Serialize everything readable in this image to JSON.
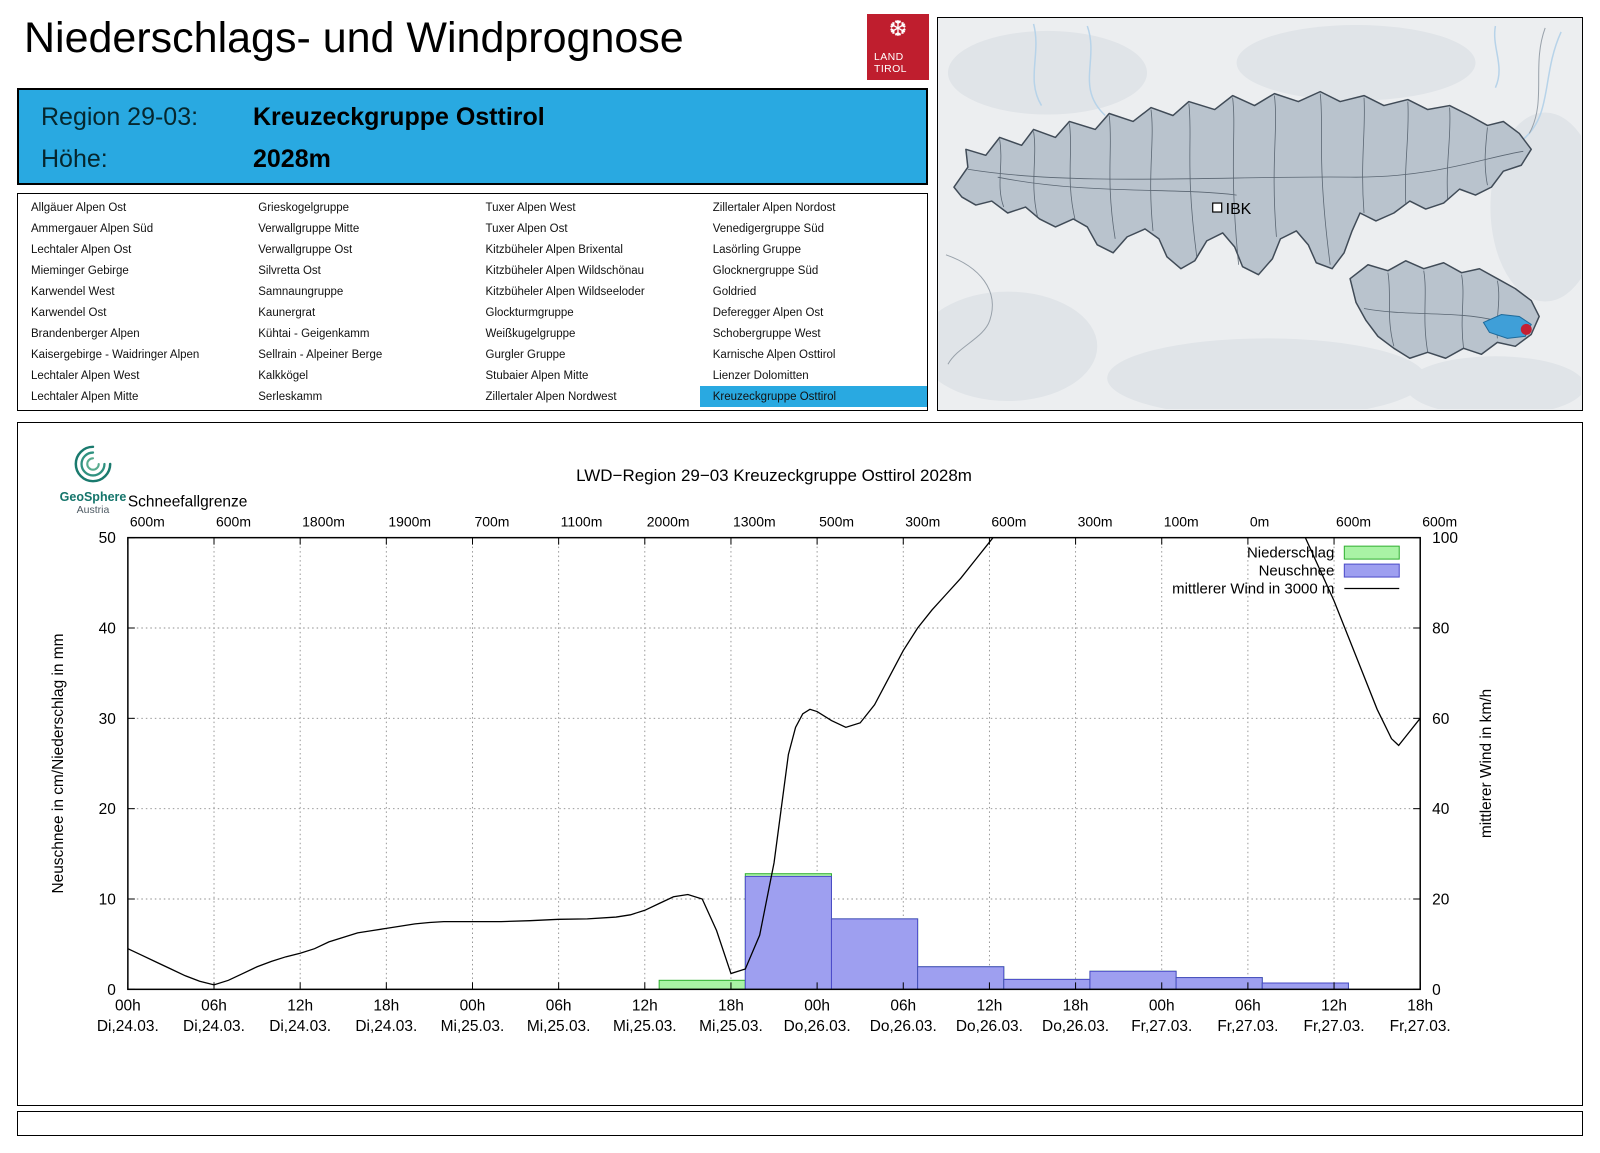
{
  "page_title": "Niederschlags- und Windprognose",
  "logo": {
    "icon": "tirol-eagle",
    "glyph": "❆",
    "line1": "LAND",
    "line2": "TIROL",
    "bg_color": "#bf1e2e"
  },
  "region_header": {
    "region_label": "Region 29-03:",
    "region_value": "Kreuzeckgruppe Osttirol",
    "altitude_label": "Höhe:",
    "altitude_value": "2028m",
    "bg_color": "#29a9e1"
  },
  "region_list": {
    "selected": "Kreuzeckgruppe Osttirol",
    "selected_bg": "#29a9e1",
    "columns": [
      [
        "Allgäuer Alpen Ost",
        "Ammergauer Alpen Süd",
        "Lechtaler Alpen Ost",
        "Mieminger Gebirge",
        "Karwendel West",
        "Karwendel Ost",
        "Brandenberger Alpen",
        "Kaisergebirge - Waidringer Alpen",
        "Lechtaler Alpen West",
        "Lechtaler Alpen Mitte"
      ],
      [
        "Grieskogelgruppe",
        "Verwallgruppe Mitte",
        "Verwallgruppe Ost",
        "Silvretta Ost",
        "Samnaungruppe",
        "Kaunergrat",
        "Kühtai - Geigenkamm",
        "Sellrain - Alpeiner Berge",
        "Kalkkögel",
        "Serleskamm"
      ],
      [
        "Tuxer Alpen West",
        "Tuxer Alpen Ost",
        "Kitzbüheler Alpen Brixental",
        "Kitzbüheler Alpen Wildschönau",
        "Kitzbüheler Alpen Wildseeloder",
        "Glockturmgruppe",
        "Weißkugelgruppe",
        "Gurgler Gruppe",
        "Stubaier Alpen Mitte",
        "Zillertaler Alpen Nordwest"
      ],
      [
        "Zillertaler Alpen Nordost",
        "Venedigergruppe Süd",
        "Lasörling Gruppe",
        "Glocknergruppe Süd",
        "Goldried",
        "Deferegger Alpen Ost",
        "Schobergruppe West",
        "Karnische Alpen Osttirol",
        "Lienzer Dolomitten",
        "Kreuzeckgruppe Osttirol"
      ]
    ]
  },
  "map": {
    "city_label": "IBK",
    "region_fill": "#b9c3cd",
    "region_stroke": "#404b57",
    "highlight_fill": "#3f9fd8",
    "marker_color": "#c41f33"
  },
  "geosphere_logo": {
    "line1": "GeoSphere",
    "line2": "Austria"
  },
  "chart_data": {
    "type": "mixed",
    "title": "LWD−Region 29−03 Kreuzeckgruppe Osttirol 2028m",
    "snowline_label": "Schneefallgrenze",
    "snowline_values": [
      "600m",
      "600m",
      "1800m",
      "1900m",
      "700m",
      "1100m",
      "2000m",
      "1300m",
      "500m",
      "300m",
      "600m",
      "300m",
      "100m",
      "0m",
      "600m",
      "600m"
    ],
    "ylabel_left": "Neuschnee in cm/Niederschlag in mm",
    "ylabel_right": "mittlerer Wind in km/h",
    "ylim_left": [
      0,
      50
    ],
    "ylim_right": [
      0,
      100
    ],
    "yticks_left": [
      0,
      10,
      20,
      30,
      40,
      50
    ],
    "yticks_right": [
      0,
      20,
      40,
      60,
      80,
      100
    ],
    "grid": true,
    "legend_position": "top-right",
    "x_hours_range": [
      0,
      90
    ],
    "xticks": [
      {
        "hour": 0,
        "time": "00h",
        "date": "Di,24.03."
      },
      {
        "hour": 6,
        "time": "06h",
        "date": "Di,24.03."
      },
      {
        "hour": 12,
        "time": "12h",
        "date": "Di,24.03."
      },
      {
        "hour": 18,
        "time": "18h",
        "date": "Di,24.03."
      },
      {
        "hour": 24,
        "time": "00h",
        "date": "Mi,25.03."
      },
      {
        "hour": 30,
        "time": "06h",
        "date": "Mi,25.03."
      },
      {
        "hour": 36,
        "time": "12h",
        "date": "Mi,25.03."
      },
      {
        "hour": 42,
        "time": "18h",
        "date": "Mi,25.03."
      },
      {
        "hour": 48,
        "time": "00h",
        "date": "Do,26.03."
      },
      {
        "hour": 54,
        "time": "06h",
        "date": "Do,26.03."
      },
      {
        "hour": 60,
        "time": "12h",
        "date": "Do,26.03."
      },
      {
        "hour": 66,
        "time": "18h",
        "date": "Do,26.03."
      },
      {
        "hour": 72,
        "time": "00h",
        "date": "Fr,27.03."
      },
      {
        "hour": 78,
        "time": "06h",
        "date": "Fr,27.03."
      },
      {
        "hour": 84,
        "time": "12h",
        "date": "Fr,27.03."
      },
      {
        "hour": 90,
        "time": "18h",
        "date": "Fr,27.03."
      }
    ],
    "legend": [
      {
        "label": "Niederschlag",
        "swatch": "niederschlag"
      },
      {
        "label": "Neuschnee",
        "swatch": "neuschnee"
      },
      {
        "label": "mittlerer Wind in 3000 m",
        "swatch": "wind"
      }
    ],
    "colors": {
      "niederschlag_fill": "#a9f3a5",
      "niederschlag_stroke": "#2fae2f",
      "neuschnee_fill": "#9e9ff0",
      "neuschnee_stroke": "#4a4ac8",
      "wind_stroke": "#000000",
      "grid": "#8c8c8c"
    },
    "bars": [
      {
        "start": 37,
        "end": 43,
        "niederschlag_mm": 1.0,
        "neuschnee_cm": 0
      },
      {
        "start": 43,
        "end": 49,
        "niederschlag_mm": 12.8,
        "neuschnee_cm": 12.5
      },
      {
        "start": 49,
        "end": 55,
        "niederschlag_mm": 7.8,
        "neuschnee_cm": 7.8
      },
      {
        "start": 55,
        "end": 61,
        "niederschlag_mm": 2.5,
        "neuschnee_cm": 2.5
      },
      {
        "start": 61,
        "end": 67,
        "niederschlag_mm": 1.1,
        "neuschnee_cm": 1.1
      },
      {
        "start": 67,
        "end": 73,
        "niederschlag_mm": 2.0,
        "neuschnee_cm": 2.0
      },
      {
        "start": 73,
        "end": 79,
        "niederschlag_mm": 1.3,
        "neuschnee_cm": 1.3
      },
      {
        "start": 79,
        "end": 85,
        "niederschlag_mm": 0.7,
        "neuschnee_cm": 0.7
      }
    ],
    "wind_series": {
      "name": "mittlerer Wind in 3000 m",
      "points": [
        [
          0,
          9
        ],
        [
          1,
          7.5
        ],
        [
          2,
          6
        ],
        [
          3,
          4.5
        ],
        [
          4,
          3
        ],
        [
          5,
          1.8
        ],
        [
          6,
          1
        ],
        [
          7,
          2
        ],
        [
          8,
          3.5
        ],
        [
          9,
          5
        ],
        [
          10,
          6.2
        ],
        [
          11,
          7.2
        ],
        [
          12,
          8
        ],
        [
          13,
          9
        ],
        [
          14,
          10.5
        ],
        [
          15,
          11.5
        ],
        [
          16,
          12.5
        ],
        [
          17,
          13
        ],
        [
          18,
          13.5
        ],
        [
          19,
          14
        ],
        [
          20,
          14.5
        ],
        [
          21,
          14.8
        ],
        [
          22,
          15
        ],
        [
          24,
          15
        ],
        [
          26,
          15
        ],
        [
          28,
          15.2
        ],
        [
          30,
          15.5
        ],
        [
          32,
          15.6
        ],
        [
          34,
          16
        ],
        [
          35,
          16.5
        ],
        [
          36,
          17.5
        ],
        [
          37,
          19
        ],
        [
          38,
          20.5
        ],
        [
          39,
          21
        ],
        [
          40,
          20
        ],
        [
          41,
          13
        ],
        [
          42,
          3.5
        ],
        [
          43,
          4.5
        ],
        [
          44,
          12
        ],
        [
          45,
          28
        ],
        [
          46,
          52
        ],
        [
          46.5,
          58
        ],
        [
          47,
          61
        ],
        [
          47.5,
          62
        ],
        [
          48,
          61.5
        ],
        [
          49,
          59.5
        ],
        [
          50,
          58
        ],
        [
          51,
          59
        ],
        [
          52,
          63
        ],
        [
          53,
          69
        ],
        [
          54,
          75
        ],
        [
          55,
          80
        ],
        [
          56,
          84
        ],
        [
          57,
          87.5
        ],
        [
          58,
          91
        ],
        [
          59,
          95
        ],
        [
          60,
          99
        ],
        [
          61,
          103
        ],
        [
          63,
          108
        ],
        [
          66,
          112
        ],
        [
          70,
          114
        ],
        [
          74,
          113
        ],
        [
          78,
          109
        ],
        [
          80,
          106
        ],
        [
          81,
          103
        ],
        [
          82,
          100
        ],
        [
          83,
          93
        ],
        [
          84,
          86
        ],
        [
          85,
          78
        ],
        [
          86,
          70
        ],
        [
          87,
          62
        ],
        [
          88,
          55.5
        ],
        [
          88.5,
          54
        ],
        [
          89,
          56
        ],
        [
          90,
          60
        ]
      ]
    }
  }
}
